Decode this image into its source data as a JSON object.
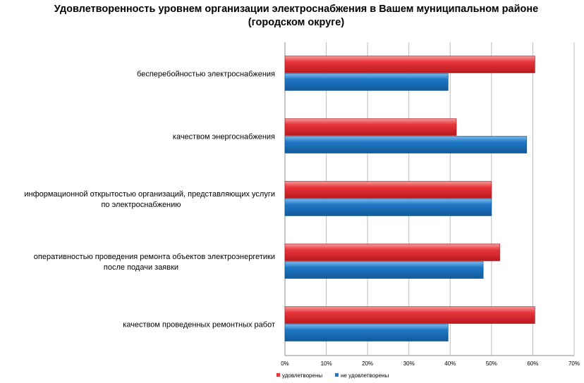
{
  "chart_data": {
    "type": "bar",
    "orientation": "horizontal",
    "title": "Удовлетворенность уровнем организации электроснабжения в Вашем муниципальном районе (городском округе)",
    "categories": [
      [
        "бесперебойностью электроснабжения"
      ],
      [
        "качеством энергоснабжения"
      ],
      [
        "информационной открытостью организаций, представляющих услуги",
        "по электроснабжению"
      ],
      [
        "оперативностью проведения  ремонта объектов электроэнергетики",
        "после подачи заявки"
      ],
      [
        "качеством проведенных ремонтных работ"
      ]
    ],
    "series": [
      {
        "name": "удовлетворены",
        "color": "#e8353b",
        "values": [
          60.5,
          41.5,
          50,
          52,
          60.5
        ]
      },
      {
        "name": "не удовлетворены",
        "color": "#1f77c4",
        "values": [
          39.5,
          58.5,
          50,
          48,
          39.5
        ]
      }
    ],
    "xlim": [
      0,
      70
    ],
    "xticks": [
      "0%",
      "10%",
      "20%",
      "30%",
      "40%",
      "50%",
      "60%",
      "70%"
    ],
    "grid": true,
    "legend": "bottom-center"
  }
}
